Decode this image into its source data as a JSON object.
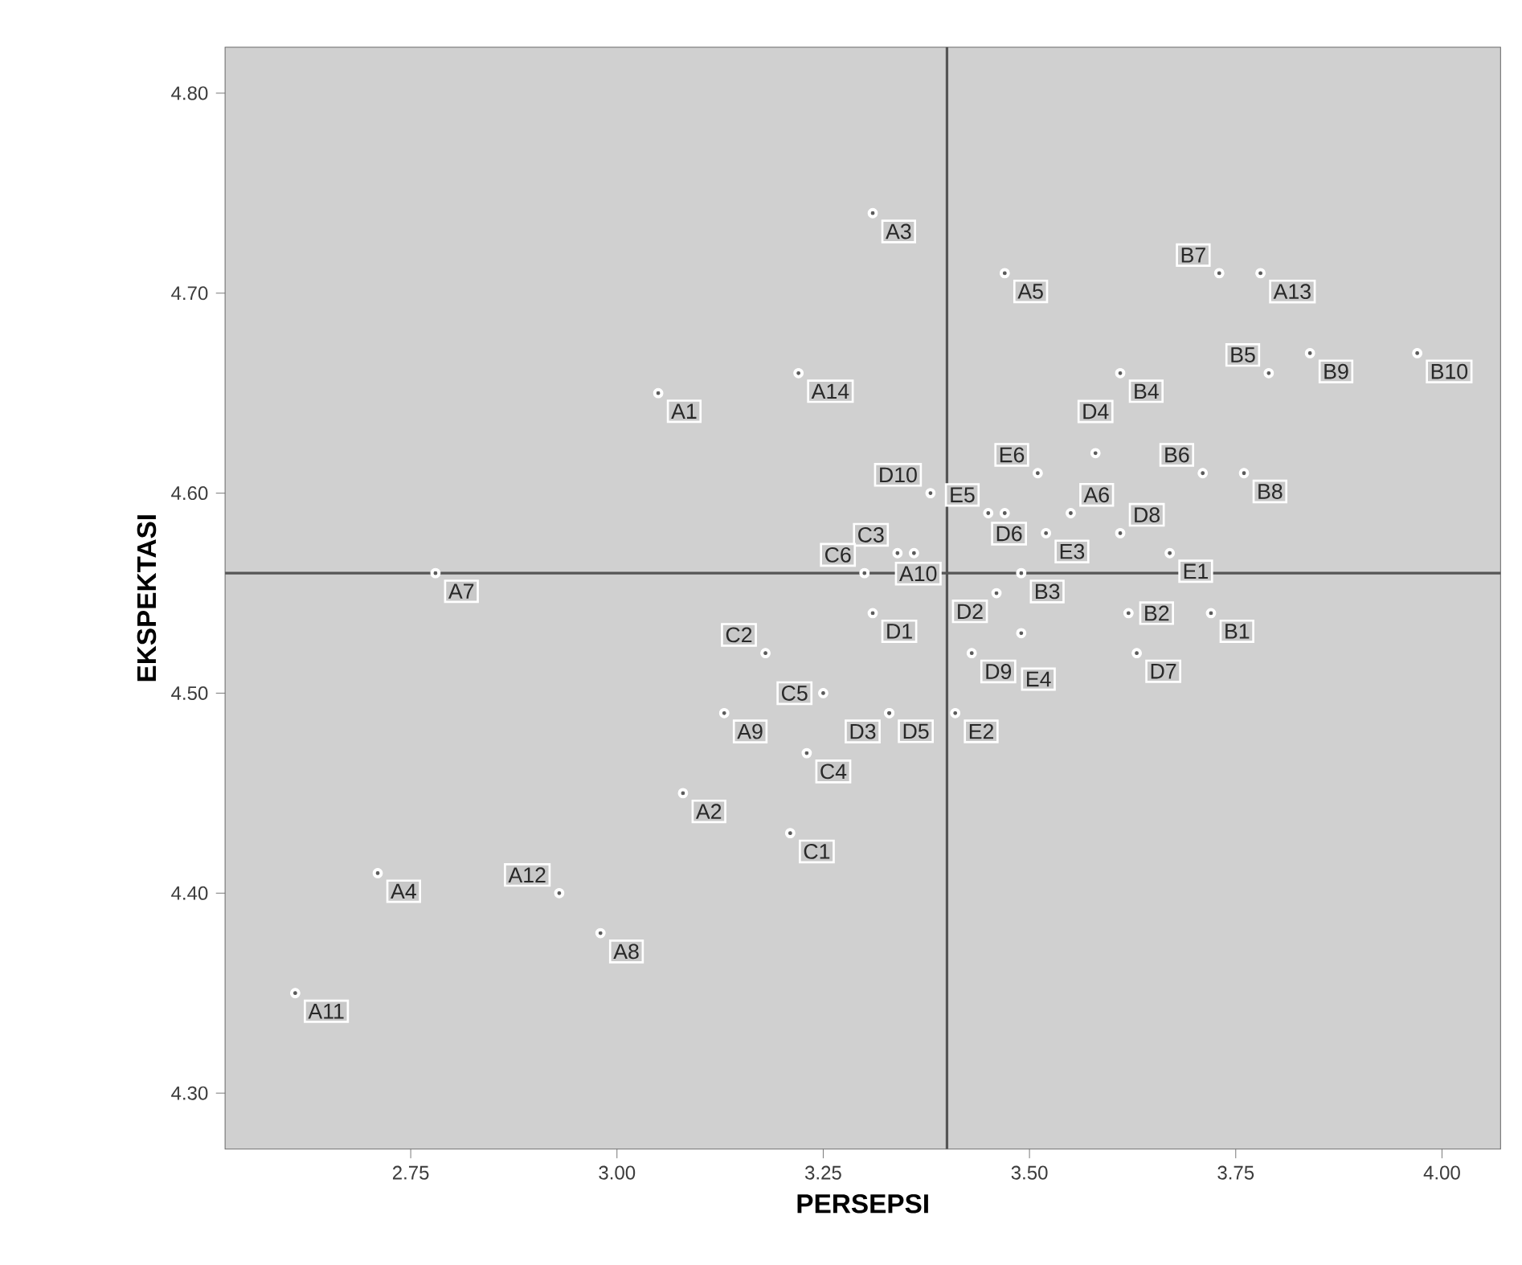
{
  "chart_data": {
    "type": "scatter",
    "xlabel": "PERSEPSI",
    "ylabel": "EKSPEKTASI",
    "xlim": [
      2.525,
      4.071
    ],
    "ylim": [
      4.272,
      4.823
    ],
    "xticks": [
      {
        "value": 2.75,
        "label": "2.75"
      },
      {
        "value": 3.0,
        "label": "3.00"
      },
      {
        "value": 3.25,
        "label": "3.25"
      },
      {
        "value": 3.5,
        "label": "3.50"
      },
      {
        "value": 3.75,
        "label": "3.75"
      },
      {
        "value": 4.0,
        "label": "4.00"
      }
    ],
    "yticks": [
      {
        "value": 4.3,
        "label": "4.30"
      },
      {
        "value": 4.4,
        "label": "4.40"
      },
      {
        "value": 4.5,
        "label": "4.50"
      },
      {
        "value": 4.6,
        "label": "4.60"
      },
      {
        "value": 4.7,
        "label": "4.70"
      },
      {
        "value": 4.8,
        "label": "4.80"
      }
    ],
    "marker": "circle",
    "ref_lines": [
      {
        "axis": "x",
        "value": 3.4,
        "color": "#555555"
      },
      {
        "axis": "y",
        "value": 4.56,
        "color": "#555555"
      }
    ],
    "series": [
      {
        "color": "#ffffff",
        "x": [
          3.05,
          3.08,
          3.31,
          2.71,
          3.47,
          3.55,
          2.78,
          2.98,
          3.13,
          3.36,
          2.61,
          2.93,
          3.78,
          3.22,
          3.72,
          3.62,
          3.49,
          3.61,
          3.79,
          3.71,
          3.73,
          3.76,
          3.84,
          3.97,
          3.21,
          3.18,
          3.34,
          3.23,
          3.25,
          3.3,
          3.31,
          3.46,
          3.33,
          3.58,
          3.33,
          3.47,
          3.63,
          3.61,
          3.43,
          3.38,
          3.67,
          3.41,
          3.52,
          3.49,
          3.45,
          3.51
        ],
        "values": [
          4.65,
          4.45,
          4.74,
          4.41,
          4.71,
          4.59,
          4.56,
          4.38,
          4.49,
          4.57,
          4.35,
          4.4,
          4.71,
          4.66,
          4.54,
          4.54,
          4.56,
          4.66,
          4.66,
          4.61,
          4.71,
          4.61,
          4.67,
          4.67,
          4.43,
          4.52,
          4.57,
          4.47,
          4.5,
          4.56,
          4.54,
          4.55,
          4.49,
          4.62,
          4.49,
          4.59,
          4.52,
          4.58,
          4.52,
          4.6,
          4.57,
          4.49,
          4.58,
          4.53,
          4.59,
          4.61
        ],
        "value_labels": [
          "A1",
          "A2",
          "A3",
          "A4",
          "A5",
          "A6",
          "A7",
          "A8",
          "A9",
          "A10",
          "A11",
          "A12",
          "A13",
          "A14",
          "B1",
          "B2",
          "B3",
          "B4",
          "B5",
          "B6",
          "B7",
          "B8",
          "B9",
          "B10",
          "C1",
          "C2",
          "C3",
          "C4",
          "C5",
          "C6",
          "D1",
          "D2",
          "D3",
          "D4",
          "D5",
          "D6",
          "D7",
          "D8",
          "D9",
          "D10",
          "E1",
          "E2",
          "E3",
          "E4",
          "E5",
          "E6"
        ]
      }
    ]
  }
}
